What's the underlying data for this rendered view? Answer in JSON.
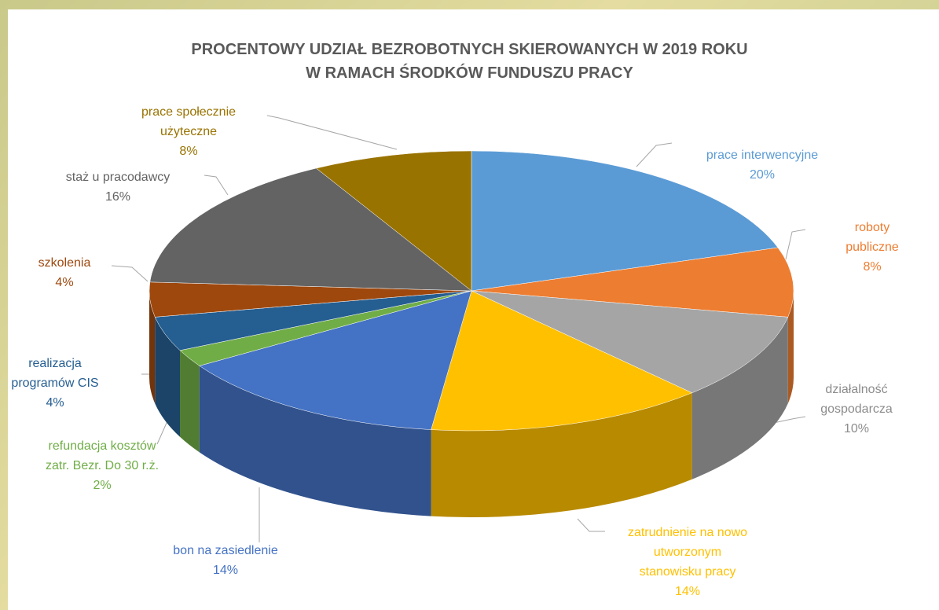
{
  "chart_data": {
    "type": "pie",
    "title": "PROCENTOWY UDZIAŁ BEZROBOTNYCH SKIEROWANYCH W 2019 ROKU\nW RAMACH ŚRODKÓW FUNDUSZU PRACY",
    "categories": [
      "prace interwencyjne",
      "roboty publiczne",
      "działalność\ngospodarcza",
      "zatrudnienie na nowo\nutworzonym\nstanowisku pracy",
      "bon na zasiedlenie",
      "refundacja kosztów\nzatr. Bezr. Do 30 r.ż.",
      "realizacja\nprogramów CIS",
      "szkolenia",
      "staż u pracodawcy",
      "prace społecznie\nużyteczne"
    ],
    "values": [
      20,
      8,
      10,
      14,
      14,
      2,
      4,
      4,
      16,
      8
    ],
    "value_labels": [
      "20%",
      "8%",
      "10%",
      "14%",
      "14%",
      "2%",
      "4%",
      "4%",
      "16%",
      "8%"
    ],
    "colors": [
      "#5b9bd5",
      "#ed7d31",
      "#a5a5a5",
      "#ffc000",
      "#4472c4",
      "#70ad47",
      "#255e91",
      "#9e480e",
      "#636363",
      "#997300"
    ]
  }
}
